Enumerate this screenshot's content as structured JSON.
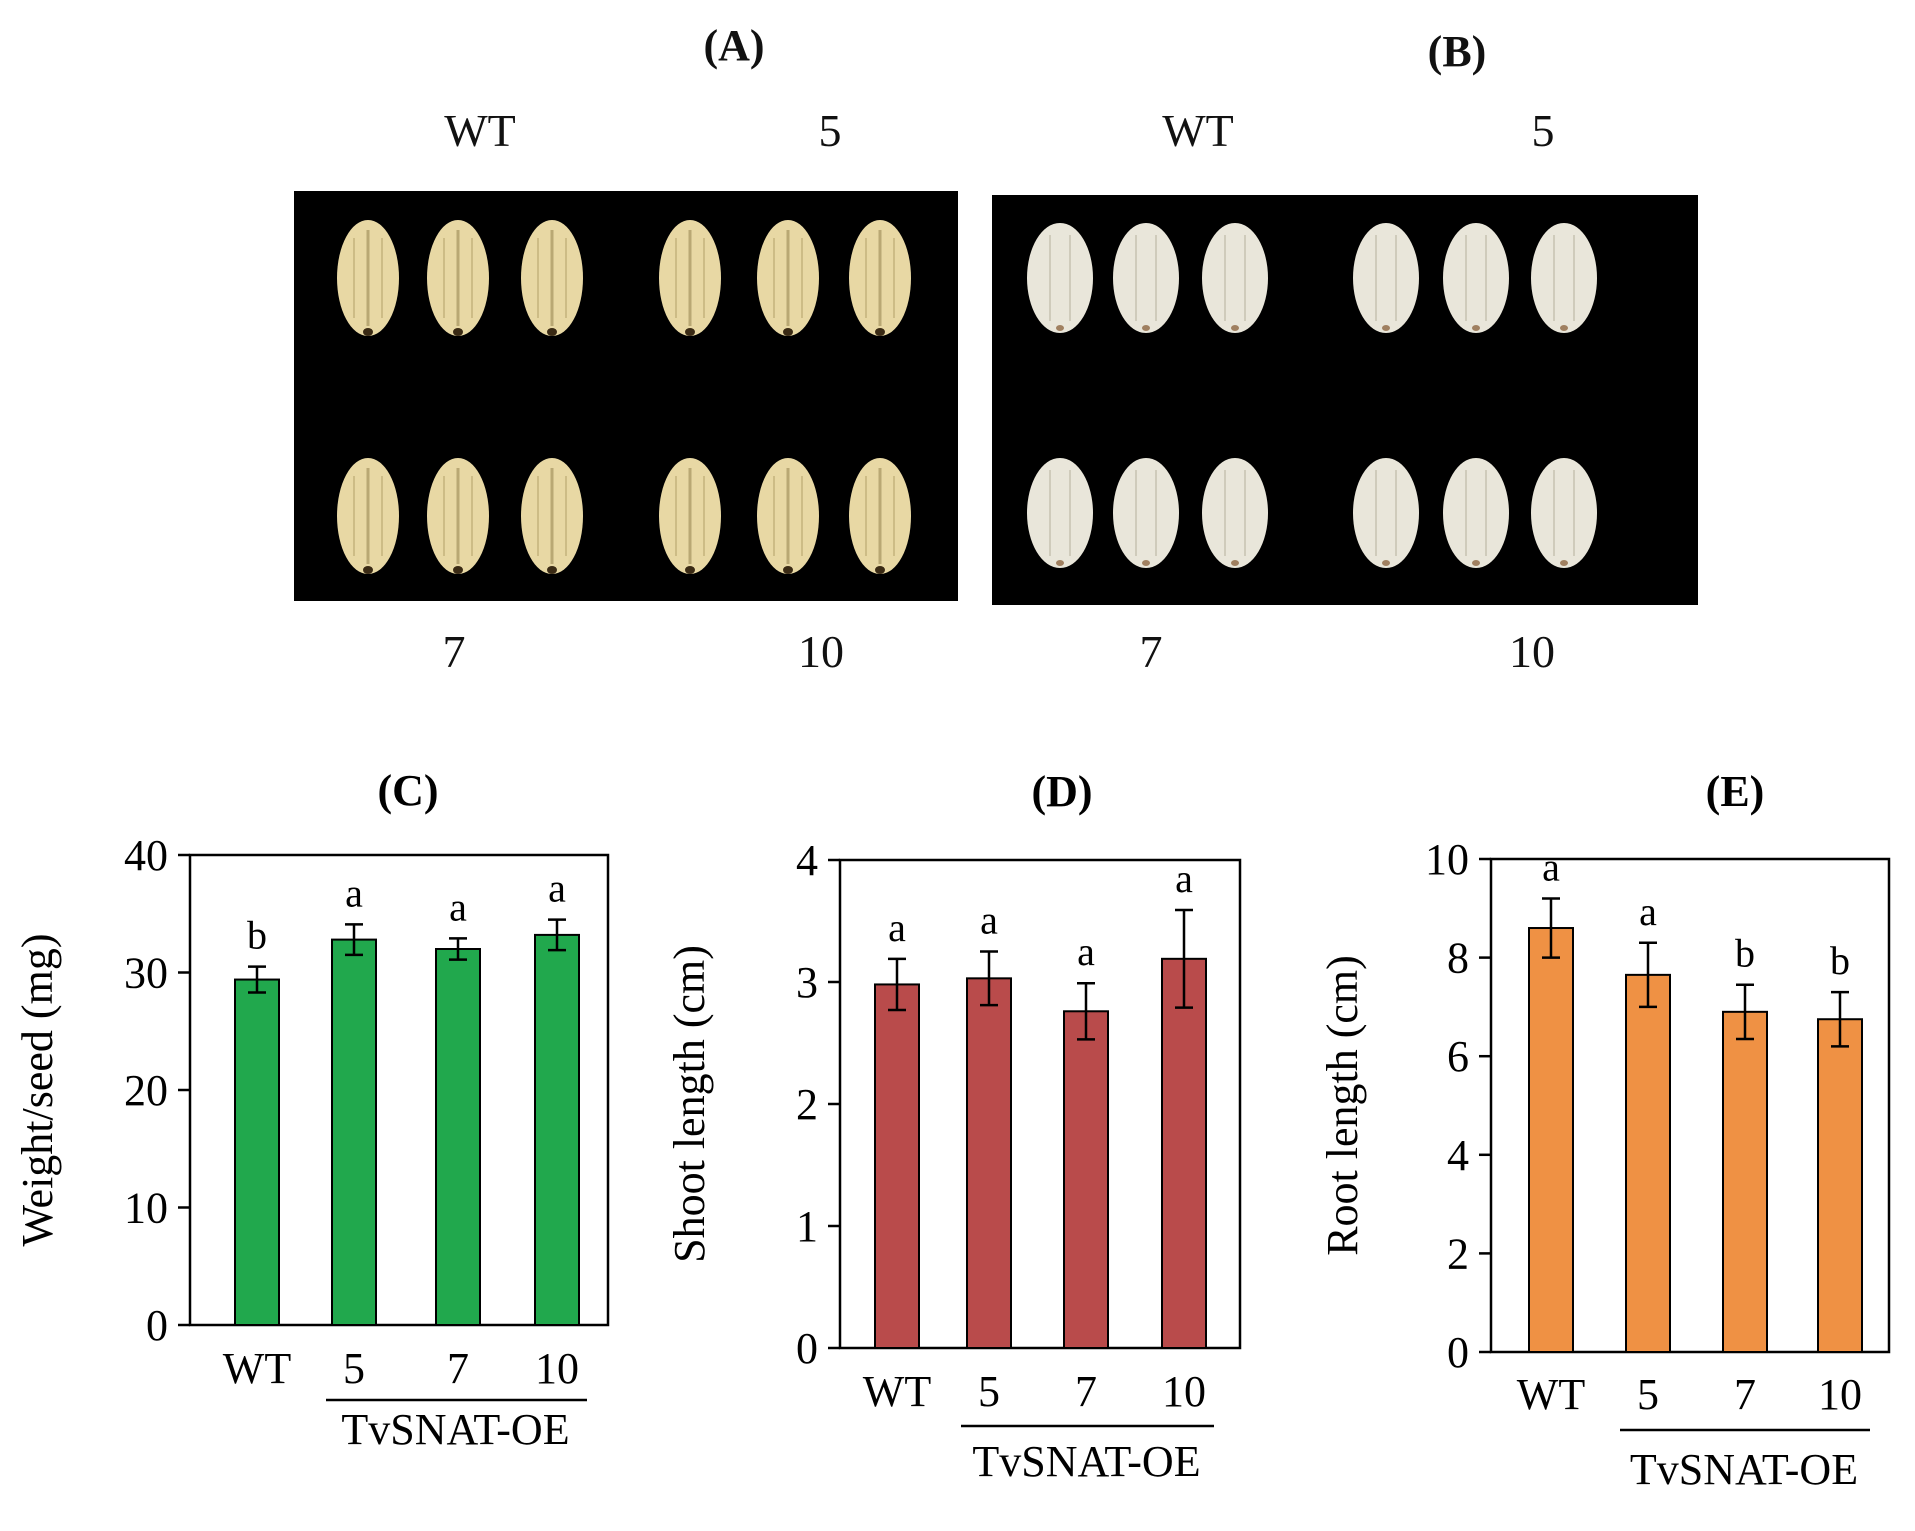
{
  "photos": [
    {
      "letter": "(A)",
      "labels": {
        "top_left": "WT",
        "top_right": "5",
        "bottom_left": "7",
        "bottom_right": "10"
      },
      "seed_color": "#e8d8a4",
      "style": "husked"
    },
    {
      "letter": "(B)",
      "labels": {
        "top_left": "WT",
        "top_right": "5",
        "bottom_left": "7",
        "bottom_right": "10"
      },
      "seed_color": "#e9e6da",
      "style": "dehulled"
    }
  ],
  "chart_data": [
    {
      "type": "bar",
      "panel": "(C)",
      "categories": [
        "WT",
        "5",
        "7",
        "10"
      ],
      "group_label": "TvSNAT-OE",
      "values": [
        29.4,
        32.8,
        32.0,
        33.2
      ],
      "errors": [
        1.1,
        1.3,
        0.9,
        1.3
      ],
      "significance": [
        "b",
        "a",
        "a",
        "a"
      ],
      "ylabel": "Weight/seed (mg)",
      "ylim": [
        0,
        40
      ],
      "yticks": [
        0,
        10,
        20,
        30,
        40
      ],
      "color": "#21a84d"
    },
    {
      "type": "bar",
      "panel": "(D)",
      "categories": [
        "WT",
        "5",
        "7",
        "10"
      ],
      "group_label": "TvSNAT-OE",
      "values": [
        2.98,
        3.03,
        2.76,
        3.19
      ],
      "errors": [
        0.21,
        0.22,
        0.23,
        0.4
      ],
      "significance": [
        "a",
        "a",
        "a",
        "a"
      ],
      "ylabel": "Shoot length (cm)",
      "ylim": [
        0,
        4
      ],
      "yticks": [
        0,
        1,
        2,
        3,
        4
      ],
      "color": "#b94b4b"
    },
    {
      "type": "bar",
      "panel": "(E)",
      "categories": [
        "WT",
        "5",
        "7",
        "10"
      ],
      "group_label": "TvSNAT-OE",
      "values": [
        8.6,
        7.65,
        6.9,
        6.75
      ],
      "errors": [
        0.6,
        0.65,
        0.55,
        0.55
      ],
      "significance": [
        "a",
        "a",
        "b",
        "b"
      ],
      "ylabel": "Root length (cm)",
      "ylim": [
        0,
        10
      ],
      "yticks": [
        0,
        2,
        4,
        6,
        8,
        10
      ],
      "color": "#ef9144"
    }
  ]
}
